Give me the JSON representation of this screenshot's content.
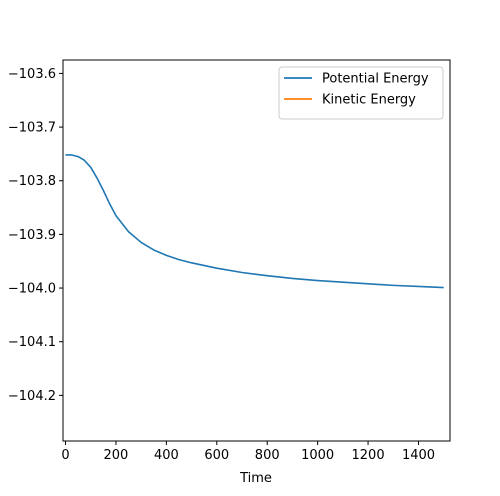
{
  "chart_data": {
    "type": "line",
    "title": "",
    "xlabel": "Time",
    "ylabel": "",
    "xlim": [
      -10,
      1525
    ],
    "ylim": [
      -104.285,
      -103.575
    ],
    "xticks": [
      0,
      200,
      400,
      600,
      800,
      1000,
      1200,
      1400
    ],
    "xtick_labels": [
      "0",
      "200",
      "400",
      "600",
      "800",
      "1000",
      "1200",
      "1400"
    ],
    "yticks": [
      -103.6,
      -103.7,
      -103.8,
      -103.9,
      -104.0,
      -104.1,
      -104.2
    ],
    "ytick_labels": [
      "−103.6",
      "−103.7",
      "−103.8",
      "−103.9",
      "−104.0",
      "−104.1",
      "−104.2"
    ],
    "grid": false,
    "legend_position": "top-right",
    "series": [
      {
        "name": "Potential Energy",
        "color": "#1f77b4",
        "x": [
          0,
          25,
          50,
          75,
          100,
          125,
          150,
          175,
          200,
          250,
          300,
          350,
          400,
          450,
          500,
          600,
          700,
          800,
          900,
          1000,
          1100,
          1200,
          1300,
          1400,
          1500
        ],
        "y": [
          -103.752,
          -103.752,
          -103.755,
          -103.762,
          -103.775,
          -103.795,
          -103.818,
          -103.843,
          -103.865,
          -103.895,
          -103.915,
          -103.929,
          -103.939,
          -103.947,
          -103.953,
          -103.963,
          -103.971,
          -103.977,
          -103.982,
          -103.986,
          -103.989,
          -103.992,
          -103.995,
          -103.997,
          -103.999
        ]
      },
      {
        "name": "Kinetic Energy",
        "color": "#ff7f0e",
        "x": [],
        "y": []
      }
    ]
  }
}
